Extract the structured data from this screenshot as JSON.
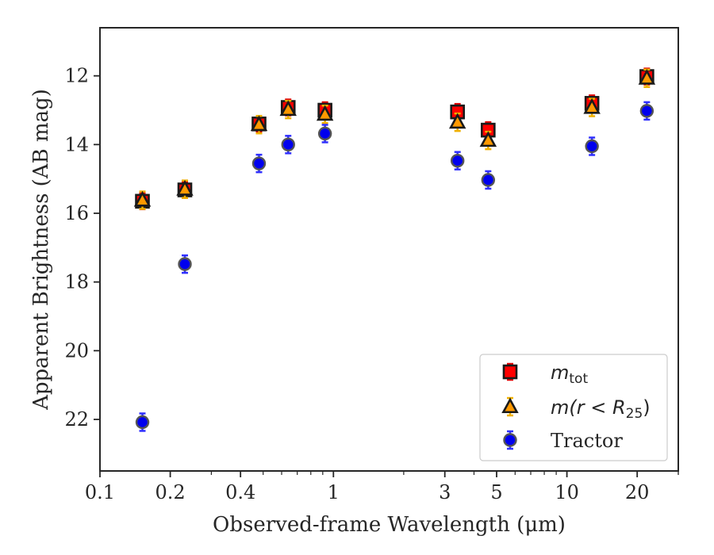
{
  "chart_data": {
    "type": "scatter",
    "xlabel": "Observed-frame Wavelength (μm)",
    "ylabel": "Apparent Brightness (AB mag)",
    "xscale": "log",
    "xlim": [
      0.1,
      30
    ],
    "ylim": [
      23.5,
      10.6
    ],
    "y_inverted": true,
    "grid": false,
    "legend_placement": "lower-right",
    "xticks": [
      {
        "value": 0.1,
        "label": "0.1"
      },
      {
        "value": 0.2,
        "label": "0.2"
      },
      {
        "value": 0.4,
        "label": "0.4"
      },
      {
        "value": 1,
        "label": "1"
      },
      {
        "value": 3,
        "label": "3"
      },
      {
        "value": 5,
        "label": "5"
      },
      {
        "value": 10,
        "label": "10"
      },
      {
        "value": 20,
        "label": "20"
      }
    ],
    "yticks": [
      {
        "value": 12,
        "label": "12"
      },
      {
        "value": 14,
        "label": "14"
      },
      {
        "value": 16,
        "label": "16"
      },
      {
        "value": 18,
        "label": "18"
      },
      {
        "value": 20,
        "label": "20"
      },
      {
        "value": 22,
        "label": "22"
      }
    ],
    "series": [
      {
        "name": "m_tot",
        "legend_main": "m",
        "legend_sub": "tot",
        "marker": "square",
        "color": "#ff0000",
        "edge_color": "#1a1a1a",
        "error_color": "#e00000",
        "x": [
          0.152,
          0.231,
          0.48,
          0.64,
          0.92,
          3.4,
          4.6,
          12.8,
          22.0
        ],
        "y": [
          15.65,
          15.32,
          13.4,
          12.92,
          13.0,
          13.05,
          13.58,
          12.8,
          12.02
        ]
      },
      {
        "name": "m(r < R25)",
        "legend_prefix": "m(r < R",
        "legend_sub": "25",
        "legend_suffix": ")",
        "marker": "triangle",
        "color": "#ff9900",
        "edge_color": "#1a1a1a",
        "error_color": "#f0b000",
        "x": [
          0.152,
          0.231,
          0.48,
          0.64,
          0.92,
          3.4,
          4.6,
          12.8,
          22.0
        ],
        "y": [
          15.62,
          15.3,
          13.42,
          12.98,
          13.12,
          13.35,
          13.88,
          12.92,
          12.07
        ]
      },
      {
        "name": "Tractor",
        "marker": "circle",
        "color": "#0000ee",
        "edge_color": "#555555",
        "error_color": "#3030ff",
        "x": [
          0.152,
          0.231,
          0.48,
          0.64,
          0.92,
          3.4,
          4.6,
          12.8,
          22.0
        ],
        "y": [
          22.08,
          17.48,
          14.55,
          14.0,
          13.68,
          14.47,
          15.03,
          14.05,
          13.02
        ]
      }
    ]
  }
}
